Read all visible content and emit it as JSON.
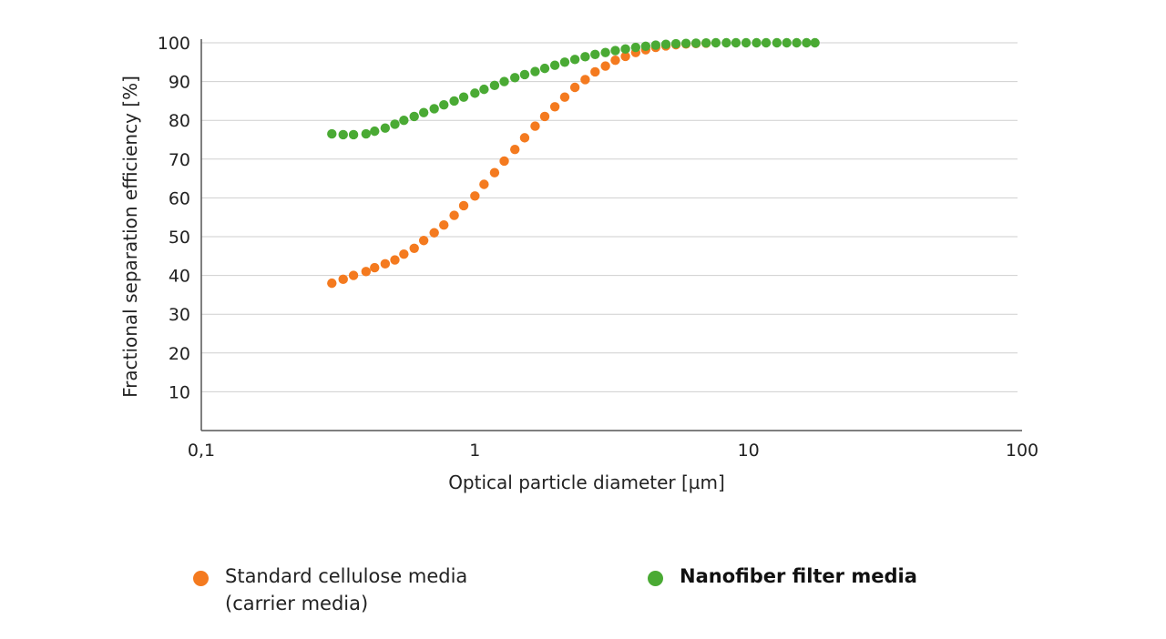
{
  "chart_data": {
    "type": "scatter",
    "x_scale": "log",
    "xlabel": "Optical particle diameter [µm]",
    "ylabel": "Fractional separation efficiency [%]",
    "xlim": [
      0.1,
      100
    ],
    "ylim": [
      0,
      100
    ],
    "x_ticks": [
      0.1,
      1,
      10,
      100
    ],
    "x_tick_labels": [
      "0,1",
      "1",
      "10",
      "100"
    ],
    "y_ticks": [
      10,
      20,
      30,
      40,
      50,
      60,
      70,
      80,
      90,
      100
    ],
    "y_tick_labels": [
      "10",
      "20",
      "30",
      "40",
      "50",
      "60",
      "70",
      "80",
      "90",
      "100"
    ],
    "grid": "horizontal",
    "legend_position": "bottom",
    "series": [
      {
        "name": "Standard cellulose media (carrier media)",
        "name_lines": [
          "Standard cellulose media",
          "(carrier media)"
        ],
        "color": "#f47a1f",
        "bold": false,
        "x": [
          0.3,
          0.33,
          0.36,
          0.4,
          0.43,
          0.47,
          0.51,
          0.55,
          0.6,
          0.65,
          0.71,
          0.77,
          0.84,
          0.91,
          1.0,
          1.08,
          1.18,
          1.28,
          1.4,
          1.52,
          1.66,
          1.8,
          1.96,
          2.13,
          2.32,
          2.53,
          2.75,
          3.0,
          3.26,
          3.55,
          3.87,
          4.21,
          4.58,
          4.99,
          5.43,
          5.91,
          6.43,
          7.0
        ],
        "y": [
          38,
          39,
          40,
          41,
          42,
          43,
          44,
          45.5,
          47,
          49,
          51,
          53,
          55.5,
          58,
          60.5,
          63.5,
          66.5,
          69.5,
          72.5,
          75.5,
          78.5,
          81,
          83.5,
          86,
          88.5,
          90.5,
          92.5,
          94,
          95.5,
          96.5,
          97.5,
          98.2,
          98.8,
          99.2,
          99.5,
          99.7,
          99.8,
          99.9
        ]
      },
      {
        "name": "Nanofiber filter media",
        "name_lines": [
          "Nanofiber filter media"
        ],
        "color": "#4aaa34",
        "bold": true,
        "x": [
          0.3,
          0.33,
          0.36,
          0.4,
          0.43,
          0.47,
          0.51,
          0.55,
          0.6,
          0.65,
          0.71,
          0.77,
          0.84,
          0.91,
          1.0,
          1.08,
          1.18,
          1.28,
          1.4,
          1.52,
          1.66,
          1.8,
          1.96,
          2.13,
          2.32,
          2.53,
          2.75,
          3.0,
          3.26,
          3.55,
          3.87,
          4.21,
          4.58,
          4.99,
          5.43,
          5.91,
          6.43,
          7.0,
          7.6,
          8.3,
          9.0,
          9.8,
          10.7,
          11.6,
          12.7,
          13.8,
          15.0,
          16.3,
          17.5
        ],
        "y": [
          76.5,
          76.3,
          76.3,
          76.5,
          77.2,
          78,
          79,
          80,
          81,
          82,
          83,
          84,
          85,
          86,
          87,
          88,
          89,
          90,
          91,
          91.8,
          92.6,
          93.4,
          94.2,
          95,
          95.7,
          96.4,
          97,
          97.5,
          98,
          98.4,
          98.8,
          99.1,
          99.4,
          99.6,
          99.75,
          99.85,
          99.9,
          99.95,
          100,
          100,
          100,
          100,
          100,
          100,
          100,
          100,
          100,
          100,
          100
        ]
      }
    ]
  }
}
